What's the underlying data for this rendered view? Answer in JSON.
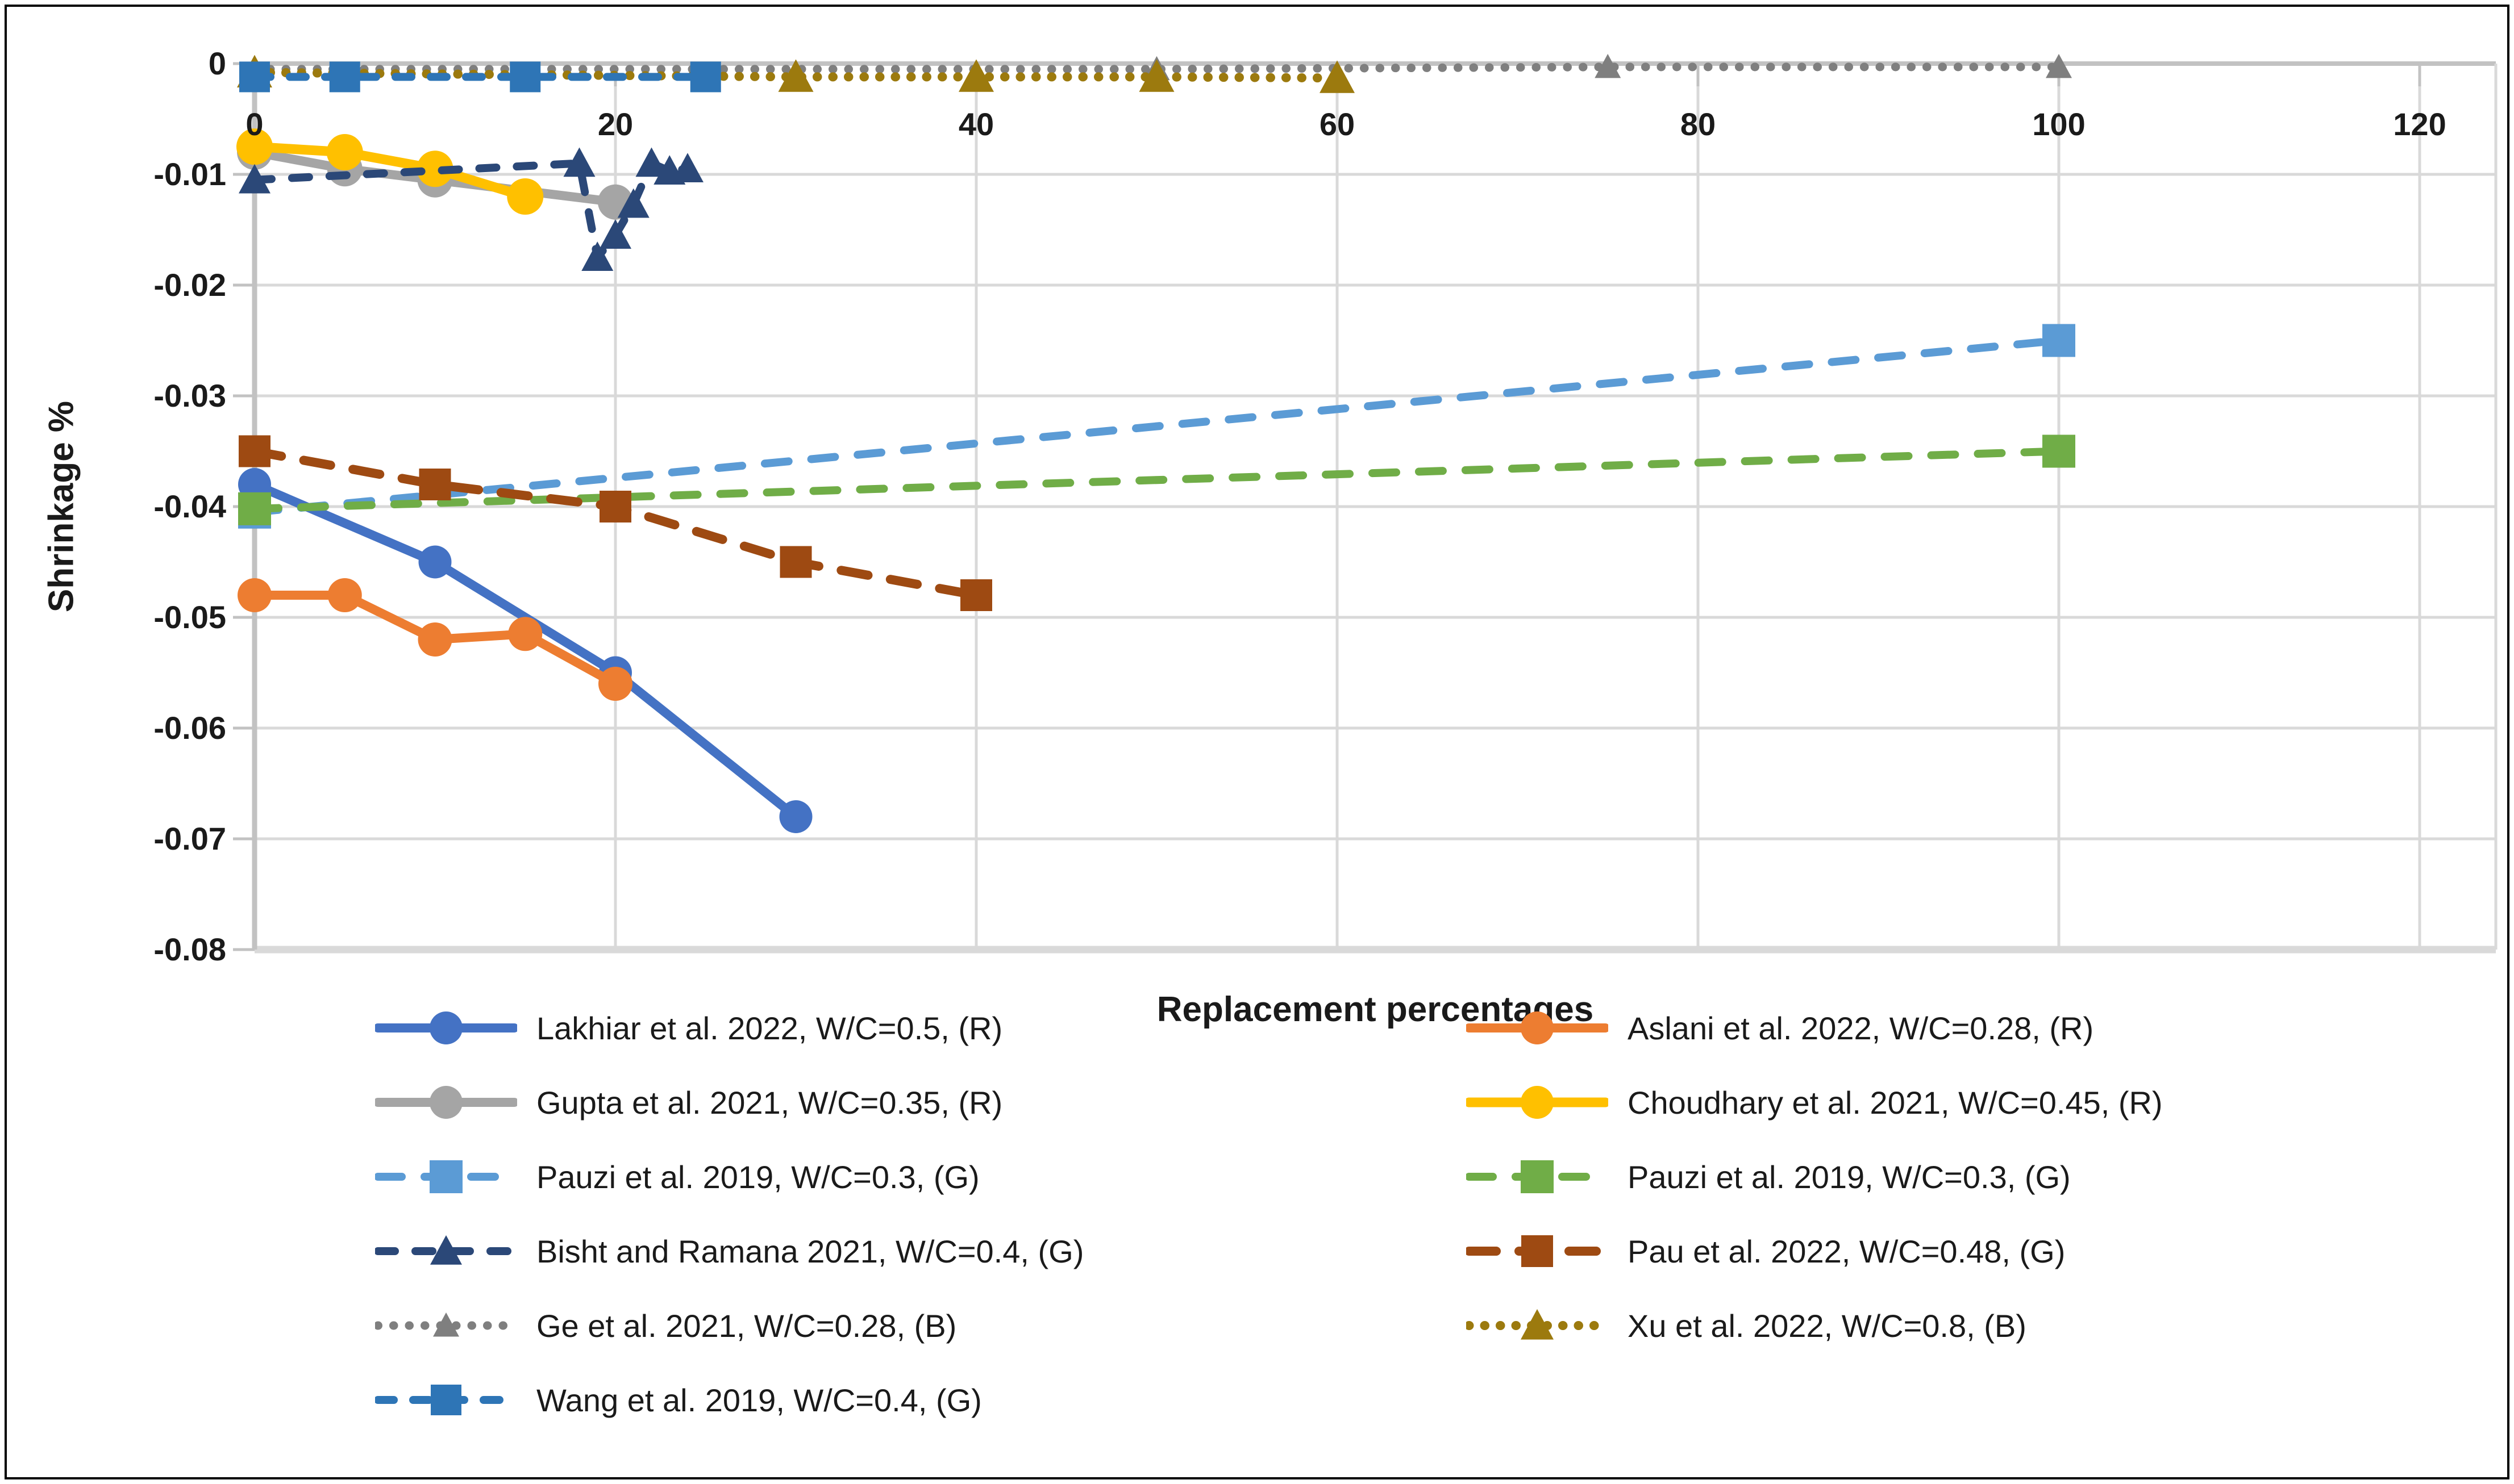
{
  "chart_data": {
    "type": "line",
    "title": "",
    "xlabel": "Replacement percentages",
    "ylabel": "Shrinkage %",
    "x_ticks": [
      0,
      20,
      40,
      60,
      80,
      100,
      120
    ],
    "x_tick_labels": [
      "0",
      "20",
      "40",
      "60",
      "80",
      "100",
      "120"
    ],
    "y_ticks": [
      0,
      -0.01,
      -0.02,
      -0.03,
      -0.04,
      -0.05,
      -0.06,
      -0.07,
      -0.08
    ],
    "y_tick_labels": [
      "0",
      "-0.01",
      "-0.02",
      "-0.03",
      "-0.04",
      "-0.05",
      "-0.06",
      "-0.07",
      "-0.08"
    ],
    "xlim": [
      0,
      120
    ],
    "ylim": [
      -0.08,
      0
    ],
    "grid": true,
    "legend_position": "bottom-two-columns",
    "style": {
      "grid_color": "#D9D9D9",
      "axis_color": "#C2C2C2",
      "text_color": "#1A1A1A",
      "background": "#FFFFFF"
    },
    "series": [
      {
        "name": "Lakhiar et al. 2022, W/C=0.5, (R)",
        "color": "#4472C4",
        "line": "solid",
        "dash": "",
        "marker": "circle",
        "marker_size": 58,
        "width": 16,
        "points": [
          [
            0,
            -0.038
          ],
          [
            10,
            -0.045
          ],
          [
            20,
            -0.055
          ],
          [
            30,
            -0.068
          ]
        ]
      },
      {
        "name": "Aslani et al. 2022, W/C=0.28, (R)",
        "color": "#ED7D31",
        "line": "solid",
        "dash": "",
        "marker": "circle",
        "marker_size": 60,
        "width": 16,
        "points": [
          [
            0,
            -0.048
          ],
          [
            5,
            -0.048
          ],
          [
            10,
            -0.052
          ],
          [
            15,
            -0.0515
          ],
          [
            20,
            -0.056
          ]
        ]
      },
      {
        "name": "Gupta et al. 2021, W/C=0.35, (R)",
        "color": "#A5A5A5",
        "line": "solid",
        "dash": "",
        "marker": "circle",
        "marker_size": 62,
        "width": 16,
        "points": [
          [
            0,
            -0.008
          ],
          [
            5,
            -0.0095
          ],
          [
            10,
            -0.0105
          ],
          [
            20,
            -0.0125
          ]
        ]
      },
      {
        "name": "Choudhary et al. 2021, W/C=0.45, (R)",
        "color": "#FFC000",
        "line": "solid",
        "dash": "",
        "marker": "circle",
        "marker_size": 64,
        "width": 17,
        "points": [
          [
            0,
            -0.0075
          ],
          [
            5,
            -0.008
          ],
          [
            10,
            -0.0095
          ],
          [
            15,
            -0.012
          ]
        ]
      },
      {
        "name": "Pauzi et al. 2019, W/C=0.3, (G)",
        "color": "#5B9BD5",
        "line": "dashed",
        "dash": "42 40",
        "marker": "square",
        "marker_size": 58,
        "width": 14,
        "points": [
          [
            0,
            -0.0405
          ],
          [
            100,
            -0.025
          ]
        ]
      },
      {
        "name": "Pauzi et al. 2019, W/C=0.3, (G)",
        "color": "#70AD47",
        "line": "dashed",
        "dash": "42 40",
        "marker": "square",
        "marker_size": 58,
        "width": 14,
        "points": [
          [
            0,
            -0.0402
          ],
          [
            100,
            -0.035
          ]
        ]
      },
      {
        "name": "Bisht and Ramana 2021, W/C=0.4, (G)",
        "color": "#2B4878",
        "line": "dashed",
        "dash": "30 36",
        "marker": "triangle",
        "marker_size": 56,
        "width": 14,
        "points": [
          [
            0,
            -0.0105
          ],
          [
            18,
            -0.009
          ],
          [
            19,
            -0.0175
          ],
          [
            20,
            -0.0155
          ],
          [
            21,
            -0.0127
          ],
          [
            22,
            -0.009
          ],
          [
            23,
            -0.0097
          ],
          [
            24,
            -0.0095
          ]
        ]
      },
      {
        "name": "Pau et al. 2022, W/C=0.48, (G)",
        "color": "#9E4A12",
        "line": "dashed",
        "dash": "48 40",
        "marker": "square",
        "marker_size": 56,
        "width": 16,
        "points": [
          [
            0,
            -0.035
          ],
          [
            10,
            -0.038
          ],
          [
            20,
            -0.04
          ],
          [
            30,
            -0.045
          ],
          [
            40,
            -0.048
          ]
        ]
      },
      {
        "name": "Ge et al. 2021, W/C=0.28, (B)",
        "color": "#7F7F7F",
        "line": "dotted",
        "dash": "0.5 27",
        "marker": "triangle",
        "marker_size": 46,
        "width": 15,
        "points": [
          [
            0,
            -0.0005
          ],
          [
            50,
            -0.0005
          ],
          [
            75,
            -0.0003
          ],
          [
            100,
            -0.0003
          ]
        ]
      },
      {
        "name": "Xu et al. 2022, W/C=0.8, (B)",
        "color": "#9C7A0E",
        "line": "dotted",
        "dash": "0.5 27",
        "marker": "triangle",
        "marker_size": 62,
        "width": 16,
        "points": [
          [
            0,
            -0.0008
          ],
          [
            30,
            -0.0012
          ],
          [
            40,
            -0.0012
          ],
          [
            50,
            -0.0012
          ],
          [
            60,
            -0.0013
          ]
        ]
      },
      {
        "name": "Wang et al. 2019, W/C=0.4, (G)",
        "color": "#2E75B6",
        "line": "dashed",
        "dash": "28 34",
        "marker": "square",
        "marker_size": 54,
        "width": 14,
        "points": [
          [
            0,
            -0.0012
          ],
          [
            5,
            -0.0012
          ],
          [
            15,
            -0.0012
          ],
          [
            25,
            -0.0012
          ]
        ]
      }
    ]
  }
}
